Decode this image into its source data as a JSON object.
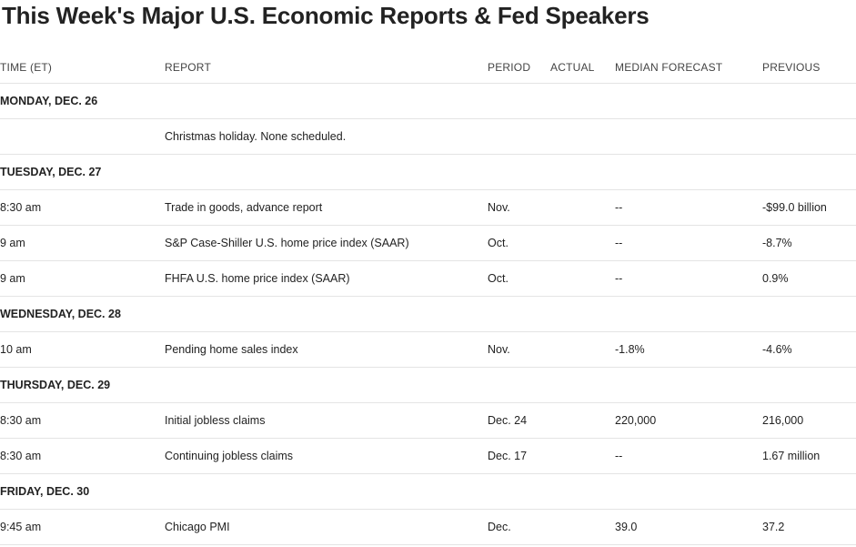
{
  "title": "This Week's Major U.S. Economic Reports & Fed Speakers",
  "columns": {
    "time": "TIME (ET)",
    "report": "REPORT",
    "period": "PERIOD",
    "actual": "ACTUAL",
    "median": "MEDIAN FORECAST",
    "previous": "PREVIOUS"
  },
  "days": [
    {
      "label": "MONDAY, DEC. 26",
      "rows": [
        {
          "time": "",
          "report": "Christmas holiday. None scheduled.",
          "period": "",
          "actual": "",
          "median": "",
          "previous": ""
        }
      ]
    },
    {
      "label": "TUESDAY, DEC. 27",
      "rows": [
        {
          "time": "8:30 am",
          "report": "Trade in goods, advance report",
          "period": "Nov.",
          "actual": "",
          "median": "--",
          "previous": "-$99.0 billion"
        },
        {
          "time": "9 am",
          "report": "S&P Case-Shiller U.S. home price index (SAAR)",
          "period": "Oct.",
          "actual": "",
          "median": "--",
          "previous": "-8.7%"
        },
        {
          "time": "9 am",
          "report": "FHFA U.S. home price index (SAAR)",
          "period": "Oct.",
          "actual": "",
          "median": "--",
          "previous": "0.9%"
        }
      ]
    },
    {
      "label": "WEDNESDAY, DEC. 28",
      "rows": [
        {
          "time": "10 am",
          "report": "Pending home sales index",
          "period": "Nov.",
          "actual": "",
          "median": "-1.8%",
          "previous": "-4.6%"
        }
      ]
    },
    {
      "label": "THURSDAY, DEC. 29",
      "rows": [
        {
          "time": "8:30 am",
          "report": "Initial jobless claims",
          "period": "Dec. 24",
          "actual": "",
          "median": "220,000",
          "previous": "216,000"
        },
        {
          "time": "8:30 am",
          "report": "Continuing jobless claims",
          "period": "Dec. 17",
          "actual": "",
          "median": "--",
          "previous": "1.67 million"
        }
      ]
    },
    {
      "label": "FRIDAY, DEC. 30",
      "rows": [
        {
          "time": "9:45 am",
          "report": "Chicago PMI",
          "period": "Dec.",
          "actual": "",
          "median": "39.0",
          "previous": "37.2"
        }
      ]
    }
  ]
}
